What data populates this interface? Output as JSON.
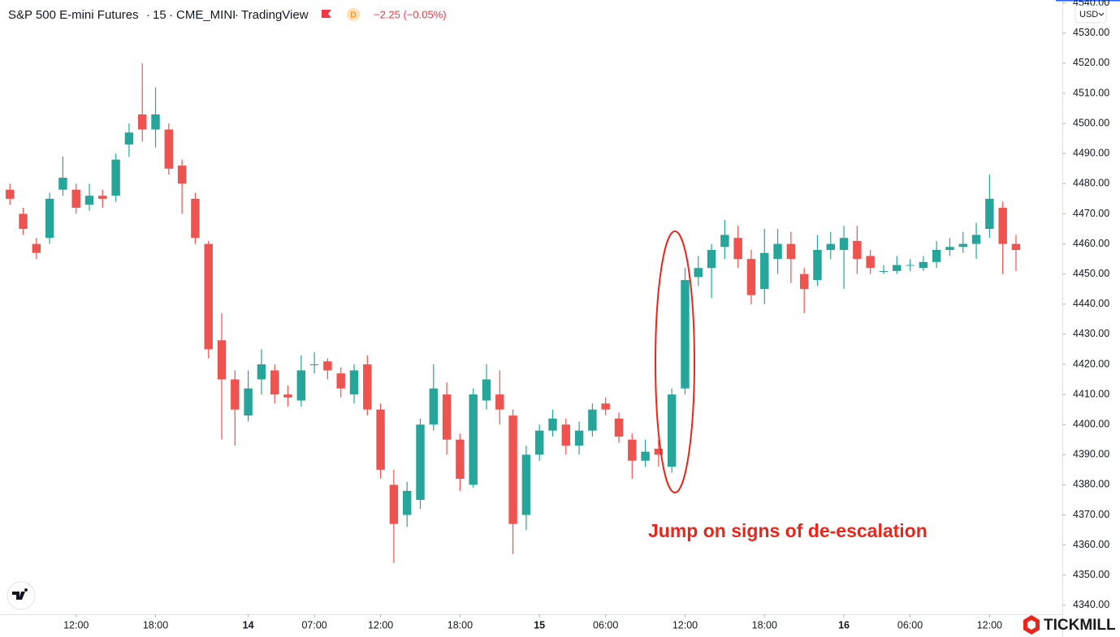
{
  "chart_data": {
    "type": "candlestick",
    "title": "S&P 500 E-mini Futures",
    "interval": "15",
    "exchange": "CME_MINI",
    "source": "TradingView",
    "badge": "D",
    "change": "−2.25 (−0.05%)",
    "currency": "USD",
    "annotation": "Jump on signs of de-escalation",
    "brand": "TICKMILL",
    "up_color": "#26a69a",
    "down_color": "#ef5350",
    "x": [
      0,
      1,
      2,
      3,
      4,
      5,
      6,
      7,
      8,
      9,
      10,
      11,
      12,
      13,
      14,
      15,
      16,
      17,
      18,
      19,
      20,
      21,
      22,
      23,
      24,
      25,
      26,
      27,
      28,
      29,
      30,
      31,
      32,
      33,
      34,
      35,
      36,
      37,
      38,
      39,
      40,
      41,
      42,
      43,
      44,
      45,
      46,
      47,
      48,
      49,
      50,
      51,
      52,
      53,
      54,
      55,
      56,
      57,
      58,
      59,
      60,
      61,
      62,
      63,
      64,
      65,
      66,
      67,
      68,
      69,
      70,
      71,
      72,
      73,
      74,
      75,
      76
    ],
    "open": [
      4478,
      4470,
      4460,
      4462,
      4478,
      4478,
      4473,
      4476,
      4476,
      4493,
      4503,
      4498,
      4498,
      4486,
      4475,
      4460,
      4428,
      4415,
      4403,
      4415,
      4418,
      4410,
      4408,
      4420,
      4421,
      4417,
      4410,
      4420,
      4405,
      4380,
      4370,
      4375,
      4400,
      4410,
      4395,
      4380,
      4408,
      4410,
      4403,
      4370,
      4390,
      4398,
      4400,
      4393,
      4398,
      4407,
      4402,
      4395,
      4388,
      4392,
      4386,
      4412,
      4449,
      4452,
      4459,
      4462,
      4455,
      4445,
      4455,
      4460,
      4450,
      4448,
      4458,
      4458,
      4461,
      4456,
      4451,
      4451,
      4453,
      4452,
      4454,
      4458,
      4459,
      4460,
      4465,
      4472,
      4460
    ],
    "high": [
      4480,
      4472,
      4462,
      4477,
      4489,
      4480,
      4480,
      4478,
      4490,
      4500,
      4520,
      4512,
      4500,
      4488,
      4477,
      4461,
      4437,
      4418,
      4418,
      4425,
      4420,
      4413,
      4423,
      4424,
      4422,
      4419,
      4420,
      4423,
      4407,
      4385,
      4381,
      4402,
      4420,
      4414,
      4397,
      4412,
      4420,
      4418,
      4405,
      4393,
      4400,
      4405,
      4402,
      4401,
      4407,
      4409,
      4404,
      4397,
      4395,
      4395,
      4412,
      4452,
      4456,
      4460,
      4468,
      4466,
      4458,
      4465,
      4465,
      4464,
      4452,
      4463,
      4464,
      4466,
      4466,
      4458,
      4453,
      4456,
      4455,
      4456,
      4461,
      4462,
      4464,
      4467,
      4483,
      4474,
      4463
    ],
    "low": [
      4473,
      4463,
      4455,
      4460,
      4476,
      4470,
      4471,
      4472,
      4474,
      4489,
      4494,
      4492,
      4483,
      4470,
      4460,
      4422,
      4395,
      4393,
      4401,
      4410,
      4407,
      4406,
      4406,
      4417,
      4415,
      4409,
      4407,
      4403,
      4382,
      4354,
      4366,
      4372,
      4398,
      4390,
      4378,
      4379,
      4405,
      4400,
      4357,
      4365,
      4388,
      4396,
      4390,
      4390,
      4396,
      4403,
      4394,
      4382,
      4386,
      4386,
      4384,
      4410,
      4446,
      4442,
      4455,
      4452,
      4440,
      4440,
      4450,
      4447,
      4437,
      4446,
      4455,
      4445,
      4450,
      4450,
      4450,
      4450,
      4451,
      4451,
      4452,
      4456,
      4457,
      4455,
      4462,
      4450,
      4451
    ],
    "close": [
      4475,
      4465,
      4457,
      4475,
      4482,
      4472,
      4476,
      4475,
      4488,
      4497,
      4498,
      4503,
      4485,
      4480,
      4462,
      4425,
      4415,
      4405,
      4412,
      4420,
      4410,
      4409,
      4418,
      4420,
      4418,
      4412,
      4418,
      4405,
      4385,
      4367,
      4378,
      4400,
      4412,
      4395,
      4382,
      4410,
      4415,
      4405,
      4367,
      4390,
      4398,
      4402,
      4393,
      4398,
      4405,
      4405,
      4396,
      4388,
      4391,
      4390,
      4410,
      4448,
      4452,
      4458,
      4463,
      4455,
      4443,
      4457,
      4460,
      4455,
      4445,
      4458,
      4460,
      4462,
      4455,
      4452,
      4451,
      4453,
      4453,
      4454,
      4458,
      4459,
      4460,
      4463,
      4475,
      4460,
      4458
    ],
    "xlim": [
      -0.75,
      79.5
    ],
    "xticks": [
      {
        "value": 5,
        "label": "12:00"
      },
      {
        "value": 11,
        "label": "18:00"
      },
      {
        "value": 18,
        "label": "14"
      },
      {
        "value": 23,
        "label": "07:00"
      },
      {
        "value": 28,
        "label": "12:00"
      },
      {
        "value": 34,
        "label": "18:00"
      },
      {
        "value": 40,
        "label": "15"
      },
      {
        "value": 45,
        "label": "06:00"
      },
      {
        "value": 51,
        "label": "12:00"
      },
      {
        "value": 57,
        "label": "18:00"
      },
      {
        "value": 63,
        "label": "16"
      },
      {
        "value": 68,
        "label": "06:00"
      },
      {
        "value": 74,
        "label": "12:00"
      }
    ],
    "ylim": [
      4337,
      4541
    ],
    "yticks": [
      {
        "value": 4340,
        "label": "4340.00"
      },
      {
        "value": 4350,
        "label": "4350.00"
      },
      {
        "value": 4360,
        "label": "4360.00"
      },
      {
        "value": 4370,
        "label": "4370.00"
      },
      {
        "value": 4380,
        "label": "4380.00"
      },
      {
        "value": 4390,
        "label": "4390.00"
      },
      {
        "value": 4400,
        "label": "4400.00"
      },
      {
        "value": 4410,
        "label": "4410.00"
      },
      {
        "value": 4420,
        "label": "4420.00"
      },
      {
        "value": 4430,
        "label": "4430.00"
      },
      {
        "value": 4440,
        "label": "4440.00"
      },
      {
        "value": 4450,
        "label": "4450.00"
      },
      {
        "value": 4460,
        "label": "4460.00"
      },
      {
        "value": 4470,
        "label": "4470.00"
      },
      {
        "value": 4480,
        "label": "4480.00"
      },
      {
        "value": 4490,
        "label": "4490.00"
      },
      {
        "value": 4500,
        "label": "4500.00"
      },
      {
        "value": 4510,
        "label": "4510.00"
      },
      {
        "value": 4520,
        "label": "4520.00"
      },
      {
        "value": 4530,
        "label": "4530.00"
      },
      {
        "value": 4540,
        "label": "4540.00"
      }
    ]
  }
}
